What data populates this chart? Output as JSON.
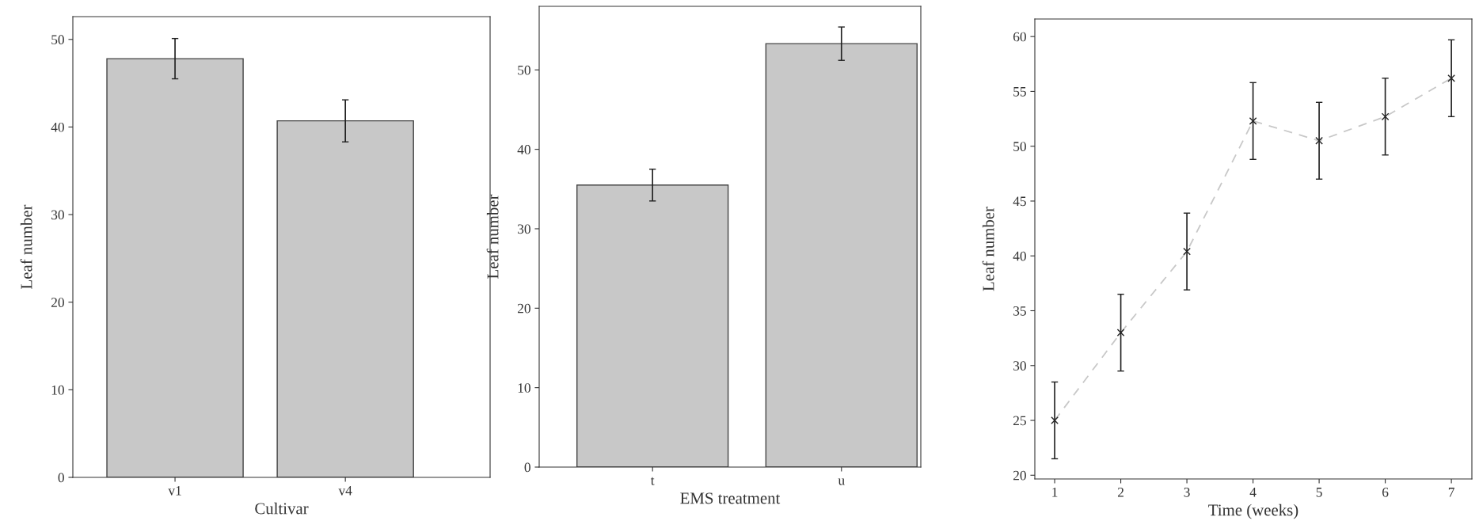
{
  "chart_data": [
    {
      "type": "bar",
      "xlabel": "Cultivar",
      "ylabel": "Leaf number",
      "categories": [
        "v1",
        "v4"
      ],
      "series": [
        {
          "color": "#c8c8c8",
          "values": [
            47.8,
            40.7
          ],
          "errors": [
            2.3,
            2.4
          ]
        }
      ],
      "ylim": [
        0,
        52.6
      ],
      "yticks": [
        0,
        10,
        20,
        30,
        40,
        50
      ],
      "grid": false
    },
    {
      "type": "bar",
      "xlabel": "EMS treatment",
      "ylabel": "Leaf number",
      "categories": [
        "t",
        "u"
      ],
      "series": [
        {
          "color": "#c8c8c8",
          "values": [
            35.5,
            53.3
          ],
          "errors": [
            2.0,
            2.1
          ]
        }
      ],
      "ylim": [
        0,
        58
      ],
      "yticks": [
        0,
        10,
        20,
        30,
        40,
        50
      ],
      "grid": false
    },
    {
      "type": "line",
      "xlabel": "Time (weeks)",
      "ylabel": "Leaf number",
      "x": [
        1,
        2,
        3,
        4,
        5,
        6,
        7
      ],
      "series": [
        {
          "color": "#c8c8c8",
          "values": [
            25.0,
            33.0,
            40.4,
            52.3,
            50.5,
            52.7,
            56.2
          ],
          "errors": [
            3.5,
            3.5,
            3.5,
            3.5,
            3.5,
            3.5,
            3.5
          ]
        }
      ],
      "xlim": [
        0.7,
        7.31
      ],
      "xticks": [
        1,
        2,
        3,
        4,
        5,
        6,
        7
      ],
      "ylim": [
        19.66,
        61.6
      ],
      "yticks": [
        20,
        25,
        30,
        35,
        40,
        45,
        50,
        55,
        60
      ],
      "marker": "cross",
      "line_style": "dashed",
      "grid": false
    }
  ]
}
